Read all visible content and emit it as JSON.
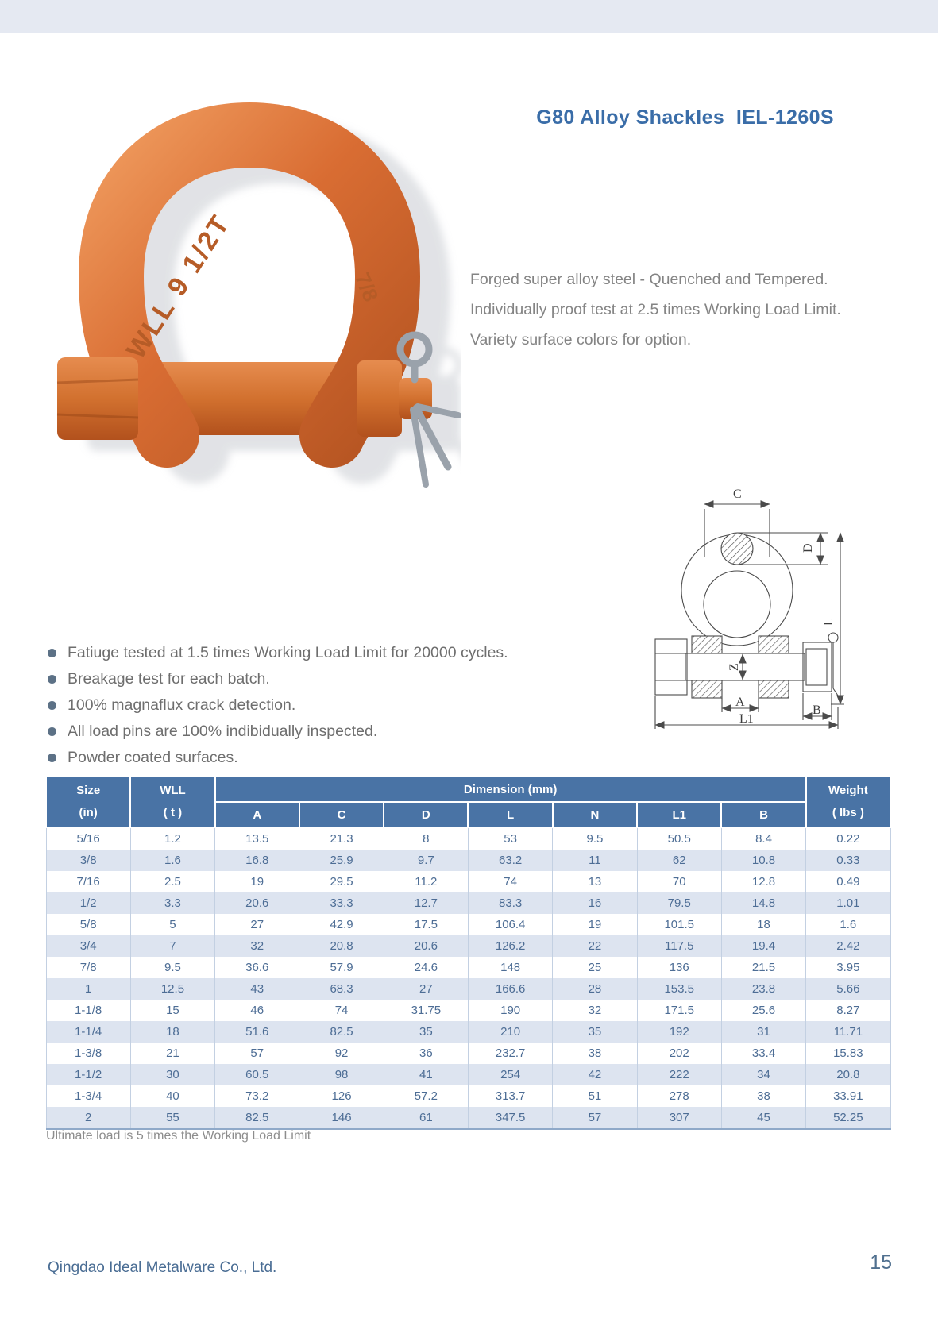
{
  "header": {
    "title": "G80 Alloy Shackles  IEL-1260S"
  },
  "intro": {
    "lines": [
      "Forged super alloy steel - Quenched and Tempered.",
      "Individually proof test at 2.5 times Working Load Limit.",
      "Variety surface colors for option."
    ]
  },
  "features": [
    "Fatiuge tested at 1.5 times Working Load Limit for 20000 cycles.",
    "Breakage test for each batch.",
    "100% magnaflux crack detection.",
    "All load pins are 100% indibidually inspected.",
    "Powder coated surfaces."
  ],
  "product_image": {
    "embossed_left": "WLL 9 1/2T",
    "embossed_right": "7/8"
  },
  "diagram_labels": {
    "c": "C",
    "d": "D",
    "l": "L",
    "z": "Z",
    "a": "A",
    "b": "B",
    "l1": "L1"
  },
  "table": {
    "header": {
      "size_line1": "Size",
      "size_line2": "(in)",
      "wll_line1": "WLL",
      "wll_line2": "( t )",
      "dimension_group": "Dimension (mm)",
      "dimension_cols": [
        "A",
        "C",
        "D",
        "L",
        "N",
        "L1",
        "B"
      ],
      "weight_line1": "Weight",
      "weight_line2": "( lbs )"
    },
    "rows": [
      [
        "5/16",
        "1.2",
        "13.5",
        "21.3",
        "8",
        "53",
        "9.5",
        "50.5",
        "8.4",
        "0.22"
      ],
      [
        "3/8",
        "1.6",
        "16.8",
        "25.9",
        "9.7",
        "63.2",
        "11",
        "62",
        "10.8",
        "0.33"
      ],
      [
        "7/16",
        "2.5",
        "19",
        "29.5",
        "11.2",
        "74",
        "13",
        "70",
        "12.8",
        "0.49"
      ],
      [
        "1/2",
        "3.3",
        "20.6",
        "33.3",
        "12.7",
        "83.3",
        "16",
        "79.5",
        "14.8",
        "1.01"
      ],
      [
        "5/8",
        "5",
        "27",
        "42.9",
        "17.5",
        "106.4",
        "19",
        "101.5",
        "18",
        "1.6"
      ],
      [
        "3/4",
        "7",
        "32",
        "20.8",
        "20.6",
        "126.2",
        "22",
        "117.5",
        "19.4",
        "2.42"
      ],
      [
        "7/8",
        "9.5",
        "36.6",
        "57.9",
        "24.6",
        "148",
        "25",
        "136",
        "21.5",
        "3.95"
      ],
      [
        "1",
        "12.5",
        "43",
        "68.3",
        "27",
        "166.6",
        "28",
        "153.5",
        "23.8",
        "5.66"
      ],
      [
        "1-1/8",
        "15",
        "46",
        "74",
        "31.75",
        "190",
        "32",
        "171.5",
        "25.6",
        "8.27"
      ],
      [
        "1-1/4",
        "18",
        "51.6",
        "82.5",
        "35",
        "210",
        "35",
        "192",
        "31",
        "11.71"
      ],
      [
        "1-3/8",
        "21",
        "57",
        "92",
        "36",
        "232.7",
        "38",
        "202",
        "33.4",
        "15.83"
      ],
      [
        "1-1/2",
        "30",
        "60.5",
        "98",
        "41",
        "254",
        "42",
        "222",
        "34",
        "20.8"
      ],
      [
        "1-3/4",
        "40",
        "73.2",
        "126",
        "57.2",
        "313.7",
        "51",
        "278",
        "38",
        "33.91"
      ],
      [
        "2",
        "55",
        "82.5",
        "146",
        "61",
        "347.5",
        "57",
        "307",
        "45",
        "52.25"
      ]
    ]
  },
  "note": "Ultimate load is 5 times the Working Load Limit",
  "footer": {
    "company": "Qingdao Ideal Metalware Co., Ltd.",
    "page_number": "15"
  },
  "colors": {
    "accent_blue": "#3a6da8",
    "table_header_bg": "#4973a5",
    "table_alt_row": "#dde4f0",
    "table_text": "#4d6d95",
    "shackle_orange": "#d96d33",
    "top_bar": "#e5e9f2"
  }
}
